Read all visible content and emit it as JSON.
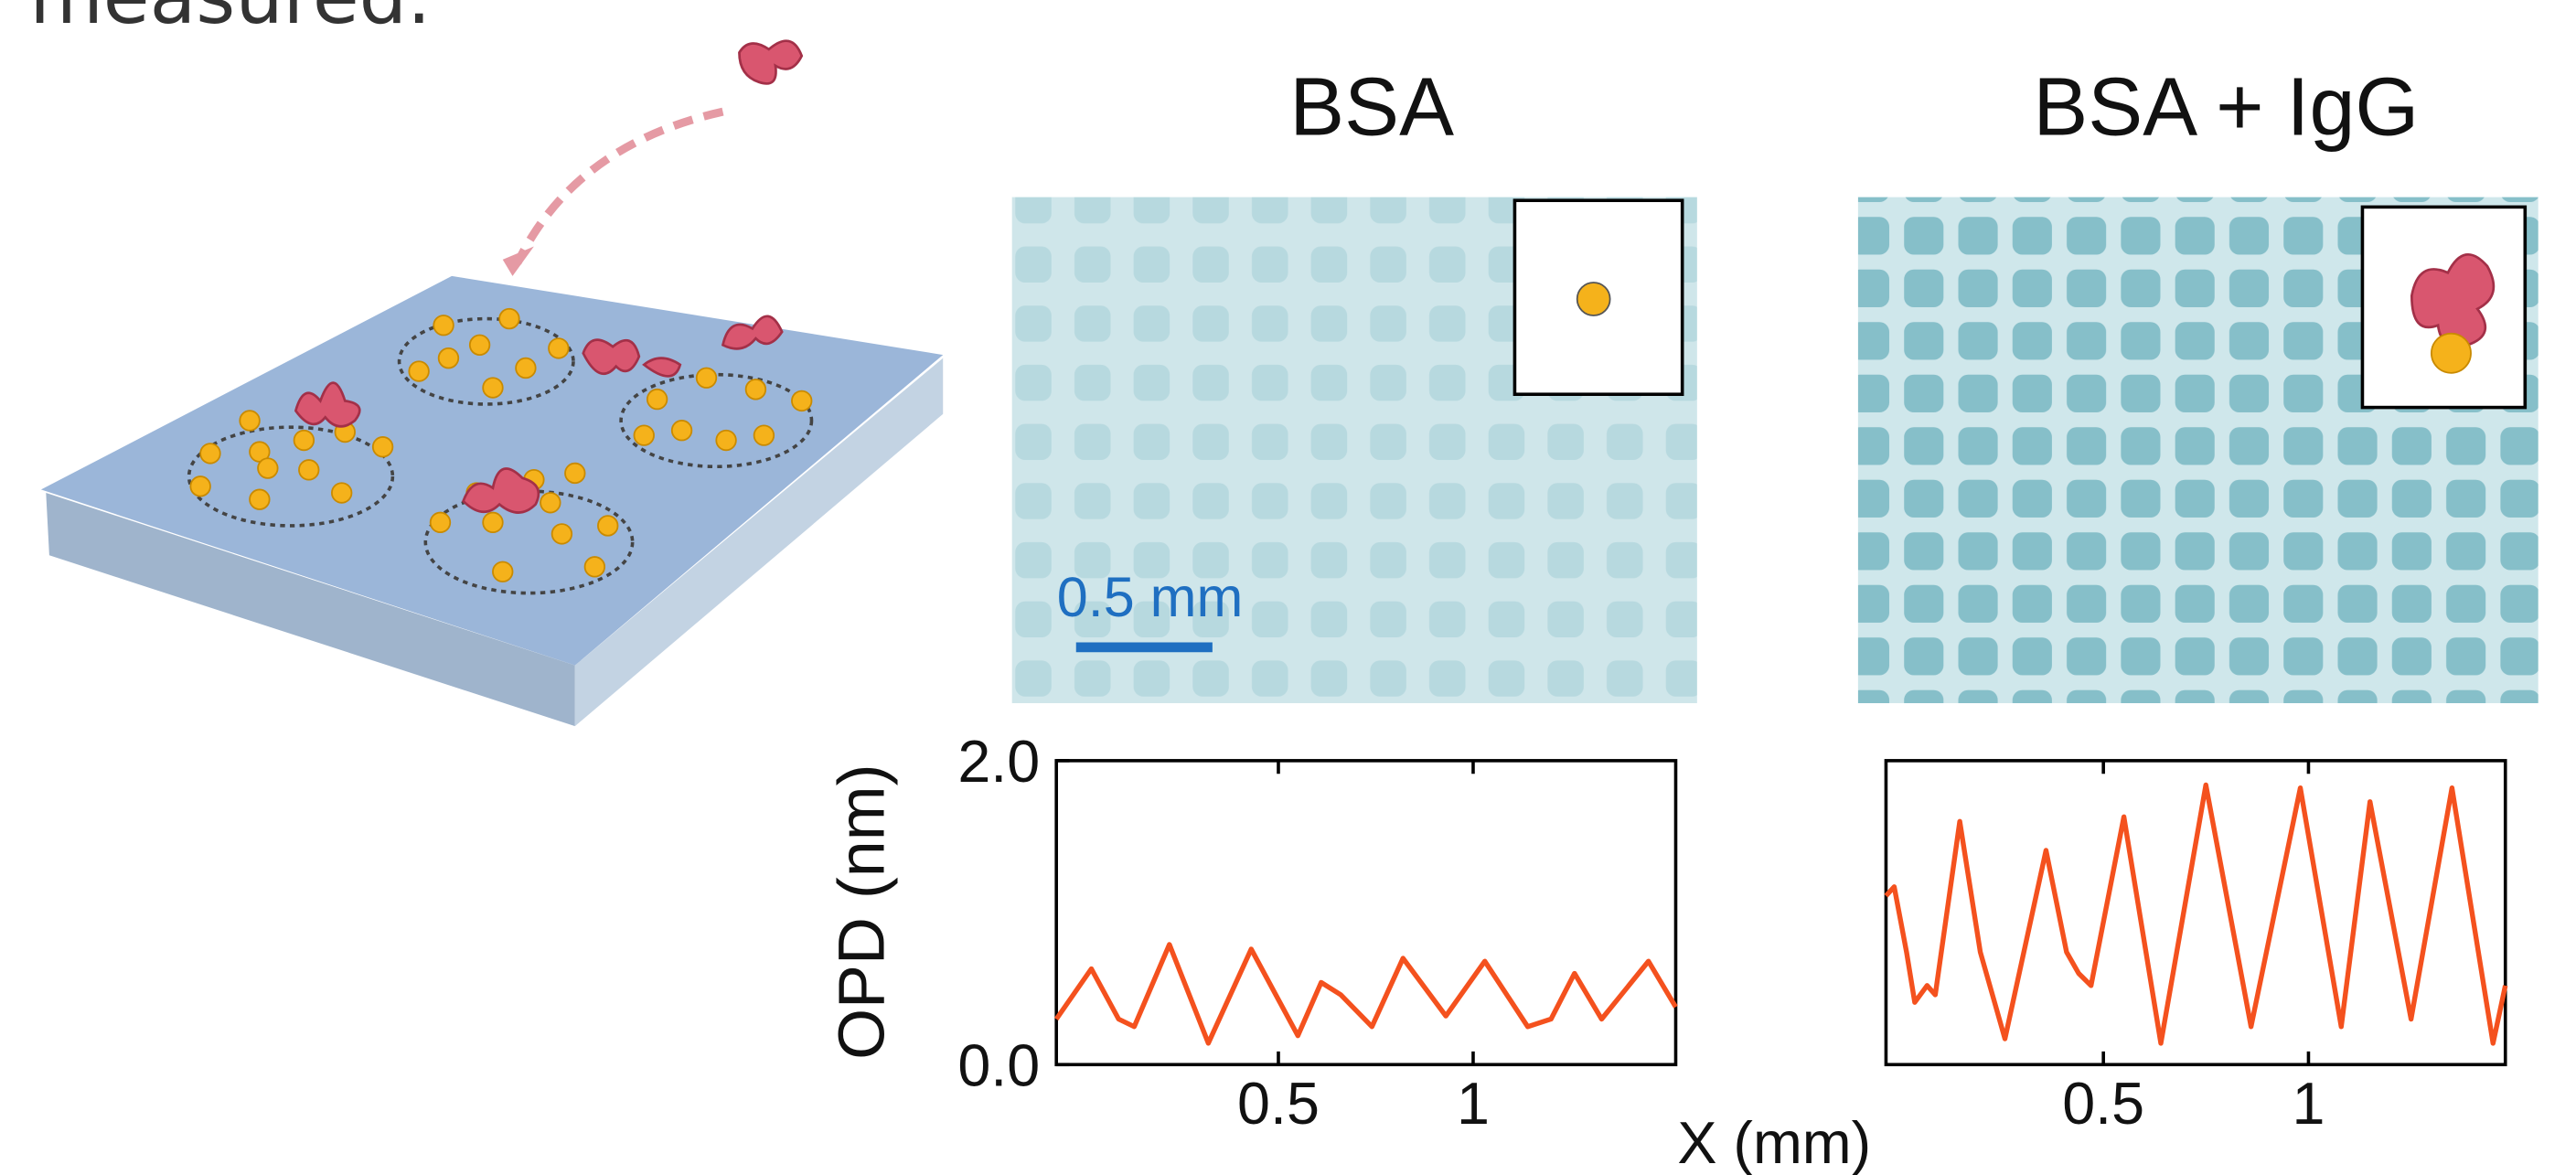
{
  "caption_fragment": "measured.",
  "y_label": "OPD (nm)",
  "x_label": "X (mm)",
  "scale_bar": "0.5 mm",
  "chart_data": [
    {
      "type": "line",
      "title": "BSA",
      "color": "#f4511e",
      "x": [
        -0.07,
        0.02,
        0.09,
        0.13,
        0.22,
        0.32,
        0.43,
        0.55,
        0.61,
        0.66,
        0.74,
        0.82,
        0.93,
        1.03,
        1.14,
        1.2,
        1.26,
        1.33,
        1.45,
        1.52
      ],
      "values": [
        0.3,
        0.63,
        0.3,
        0.25,
        0.79,
        0.14,
        0.76,
        0.19,
        0.54,
        0.46,
        0.25,
        0.7,
        0.32,
        0.68,
        0.25,
        0.3,
        0.6,
        0.3,
        0.68,
        0.38
      ],
      "xlim": [
        -0.07,
        1.52
      ],
      "ylim": [
        0,
        2
      ],
      "xticks": [
        0.5,
        1
      ],
      "yticks": [
        {
          "value": 0,
          "label": "0.0"
        },
        {
          "value": 2,
          "label": "2.0"
        }
      ]
    },
    {
      "type": "line",
      "title": "BSA + IgG",
      "color": "#f4511e",
      "x": [
        -0.03,
        -0.01,
        0.02,
        0.04,
        0.07,
        0.09,
        0.15,
        0.2,
        0.26,
        0.36,
        0.41,
        0.44,
        0.47,
        0.55,
        0.64,
        0.75,
        0.86,
        0.98,
        1.08,
        1.15,
        1.25,
        1.35,
        1.45,
        1.48
      ],
      "values": [
        1.11,
        1.17,
        0.74,
        0.41,
        0.52,
        0.46,
        1.6,
        0.74,
        0.17,
        1.41,
        0.74,
        0.6,
        0.52,
        1.63,
        0.14,
        1.84,
        0.25,
        1.82,
        0.25,
        1.73,
        0.3,
        1.82,
        0.14,
        0.52
      ],
      "xlim": [
        -0.03,
        1.48
      ],
      "ylim": [
        0,
        2
      ],
      "xticks": [
        0.5,
        1
      ]
    }
  ]
}
